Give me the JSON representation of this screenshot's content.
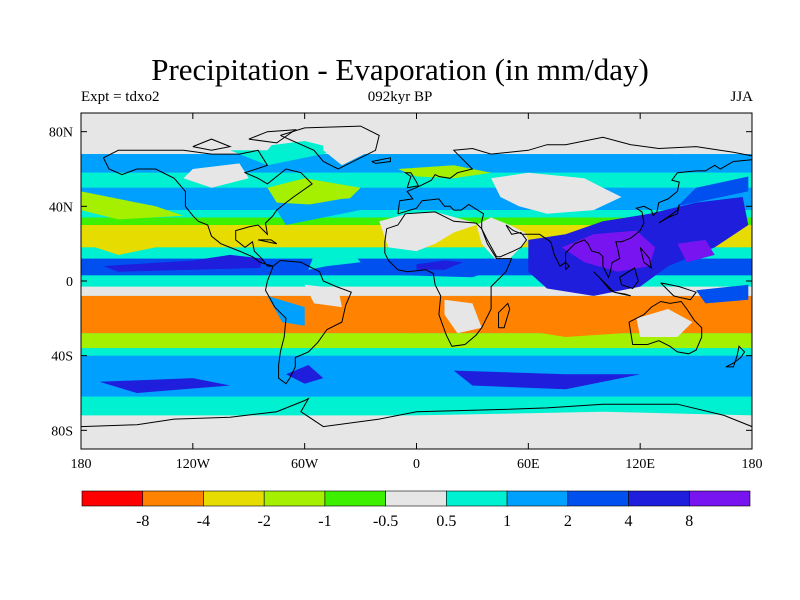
{
  "title": "Precipitation - Evaporation (in mm/day)",
  "subtitle_left": "Expt = tdxo2",
  "subtitle_center": "092kyr BP",
  "subtitle_right": "JJA",
  "colors": {
    "background": "#ffffff",
    "land_dry": "#e6e6e6",
    "coastline": "#000000"
  },
  "map": {
    "projection": "cylindrical-equidistant",
    "lon_range": [
      -180,
      180
    ],
    "lat_range": [
      -90,
      90
    ],
    "x_ticks": [
      {
        "value": -180,
        "label": "180"
      },
      {
        "value": -120,
        "label": "120W"
      },
      {
        "value": -60,
        "label": "60W"
      },
      {
        "value": 0,
        "label": "0"
      },
      {
        "value": 60,
        "label": "60E"
      },
      {
        "value": 120,
        "label": "120E"
      },
      {
        "value": 180,
        "label": "180"
      }
    ],
    "y_ticks": [
      {
        "value": 80,
        "label": "80N"
      },
      {
        "value": 40,
        "label": "40N"
      },
      {
        "value": 0,
        "label": "0"
      },
      {
        "value": -40,
        "label": "40S"
      },
      {
        "value": -80,
        "label": "80S"
      }
    ]
  },
  "colorbar": {
    "colors": [
      "#ff0000",
      "#ff8200",
      "#e6dc00",
      "#a5f000",
      "#3cf000",
      "#e6e6e6",
      "#00f0d2",
      "#00a0ff",
      "#0050f0",
      "#1e1edc",
      "#7814f0"
    ],
    "labels": [
      "-8",
      "-4",
      "-2",
      "-1",
      "-0.5",
      "0.5",
      "1",
      "2",
      "4",
      "8"
    ]
  }
}
